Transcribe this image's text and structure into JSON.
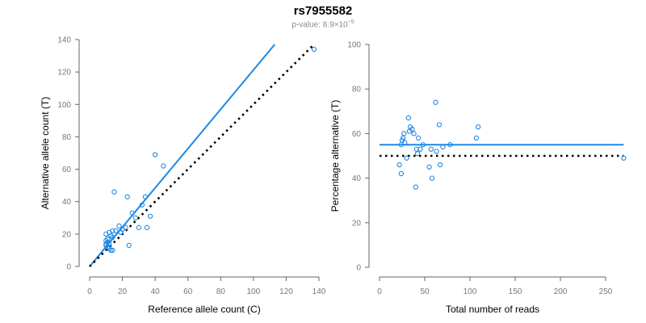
{
  "title": "rs7955582",
  "subtitle": {
    "prefix": "p-value: 8.9×10",
    "exponent": "−5"
  },
  "colors": {
    "points": "#1e88e5",
    "fit_line": "#1e88e5",
    "reference_line": "#000000"
  },
  "chart_data": [
    {
      "type": "scatter",
      "xlabel": "Reference allele count (C)",
      "ylabel": "Alternative allele count (T)",
      "xlim": [
        0,
        140
      ],
      "ylim": [
        0,
        140
      ],
      "xticks": [
        0,
        20,
        40,
        60,
        80,
        100,
        120,
        140
      ],
      "yticks": [
        0,
        20,
        40,
        60,
        80,
        100,
        120,
        140
      ],
      "points": [
        [
          10,
          13
        ],
        [
          10,
          14
        ],
        [
          11,
          15
        ],
        [
          10,
          16
        ],
        [
          12,
          14
        ],
        [
          11,
          12
        ],
        [
          10,
          20
        ],
        [
          12,
          21
        ],
        [
          13,
          19
        ],
        [
          14,
          18
        ],
        [
          11,
          17
        ],
        [
          14,
          22
        ],
        [
          13,
          10
        ],
        [
          14,
          10
        ],
        [
          12,
          11
        ],
        [
          16,
          22
        ],
        [
          18,
          25
        ],
        [
          19,
          21
        ],
        [
          20,
          23
        ],
        [
          22,
          24
        ],
        [
          23,
          43
        ],
        [
          24,
          13
        ],
        [
          26,
          33
        ],
        [
          28,
          30
        ],
        [
          30,
          24
        ],
        [
          32,
          38
        ],
        [
          34,
          43
        ],
        [
          35,
          24
        ],
        [
          37,
          31
        ],
        [
          40,
          69
        ],
        [
          45,
          62
        ],
        [
          15,
          46
        ],
        [
          137,
          134
        ]
      ],
      "lines": [
        {
          "kind": "fit",
          "from": [
            0,
            0
          ],
          "to": [
            113,
            137
          ]
        },
        {
          "kind": "reference",
          "from": [
            0,
            0
          ],
          "to": [
            136,
            136
          ]
        }
      ]
    },
    {
      "type": "scatter",
      "xlabel": "Total number of reads",
      "ylabel": "Percentage alternative (T)",
      "xlim": [
        0,
        250
      ],
      "ylim": [
        0,
        100
      ],
      "xticks": [
        0,
        50,
        100,
        150,
        200,
        250
      ],
      "yticks": [
        0,
        20,
        40,
        60,
        80,
        100
      ],
      "points": [
        [
          22,
          46
        ],
        [
          24,
          42
        ],
        [
          24,
          55
        ],
        [
          25,
          57
        ],
        [
          26,
          58
        ],
        [
          27,
          60
        ],
        [
          28,
          56
        ],
        [
          30,
          49
        ],
        [
          32,
          67
        ],
        [
          33,
          61
        ],
        [
          34,
          63
        ],
        [
          36,
          62
        ],
        [
          38,
          60
        ],
        [
          40,
          36
        ],
        [
          41,
          53
        ],
        [
          42,
          51
        ],
        [
          43,
          58
        ],
        [
          45,
          53
        ],
        [
          48,
          55
        ],
        [
          55,
          45
        ],
        [
          57,
          53
        ],
        [
          58,
          40
        ],
        [
          62,
          74
        ],
        [
          63,
          52
        ],
        [
          66,
          64
        ],
        [
          67,
          46
        ],
        [
          70,
          54
        ],
        [
          78,
          55
        ],
        [
          107,
          58
        ],
        [
          109,
          63
        ],
        [
          270,
          49
        ]
      ],
      "lines": [
        {
          "kind": "fit",
          "from": [
            0,
            55
          ],
          "to": [
            270,
            55
          ]
        },
        {
          "kind": "reference",
          "from": [
            0,
            50
          ],
          "to": [
            270,
            50
          ]
        }
      ]
    }
  ]
}
